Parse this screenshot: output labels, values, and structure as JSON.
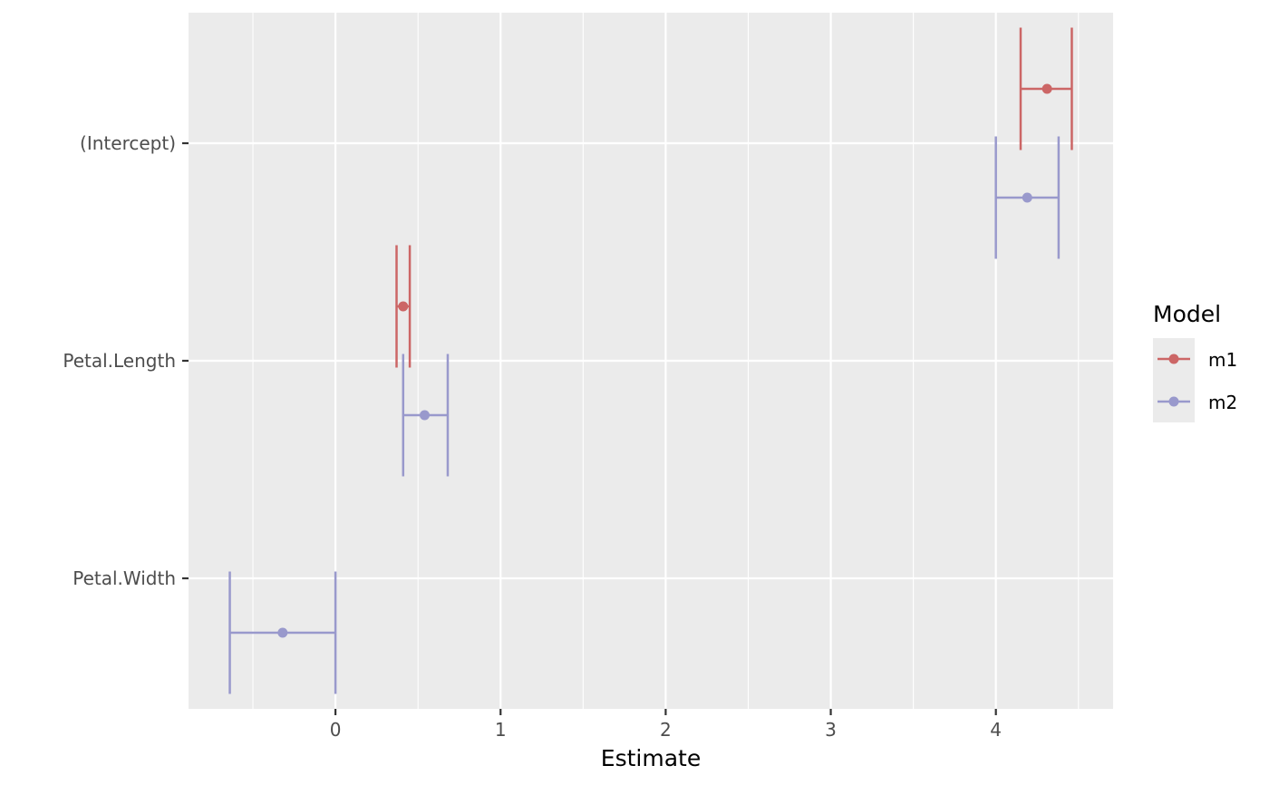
{
  "chart_data": {
    "type": "scatter",
    "subtype": "coefficient-plot-with-error-bars",
    "xlabel": "Estimate",
    "ylabel": "",
    "xlim": [
      -0.89,
      4.71
    ],
    "x_ticks": [
      0,
      1,
      2,
      3,
      4
    ],
    "x_minor_ticks": [
      -0.5,
      0.5,
      1.5,
      2.5,
      3.5,
      4.5
    ],
    "categories": [
      "(Intercept)",
      "Petal.Length",
      "Petal.Width"
    ],
    "grid": true,
    "legend": {
      "title": "Model",
      "position": "right"
    },
    "series": [
      {
        "name": "m1",
        "color": "#CC6666",
        "points": [
          {
            "term": "(Intercept)",
            "estimate": 4.31,
            "low": 4.15,
            "high": 4.46
          },
          {
            "term": "Petal.Length",
            "estimate": 0.41,
            "low": 0.37,
            "high": 0.45
          }
        ]
      },
      {
        "name": "m2",
        "color": "#9999CC",
        "points": [
          {
            "term": "(Intercept)",
            "estimate": 4.19,
            "low": 4.0,
            "high": 4.38
          },
          {
            "term": "Petal.Length",
            "estimate": 0.54,
            "low": 0.41,
            "high": 0.68
          },
          {
            "term": "Petal.Width",
            "estimate": -0.32,
            "low": -0.64,
            "high": 0.0
          }
        ]
      }
    ]
  }
}
